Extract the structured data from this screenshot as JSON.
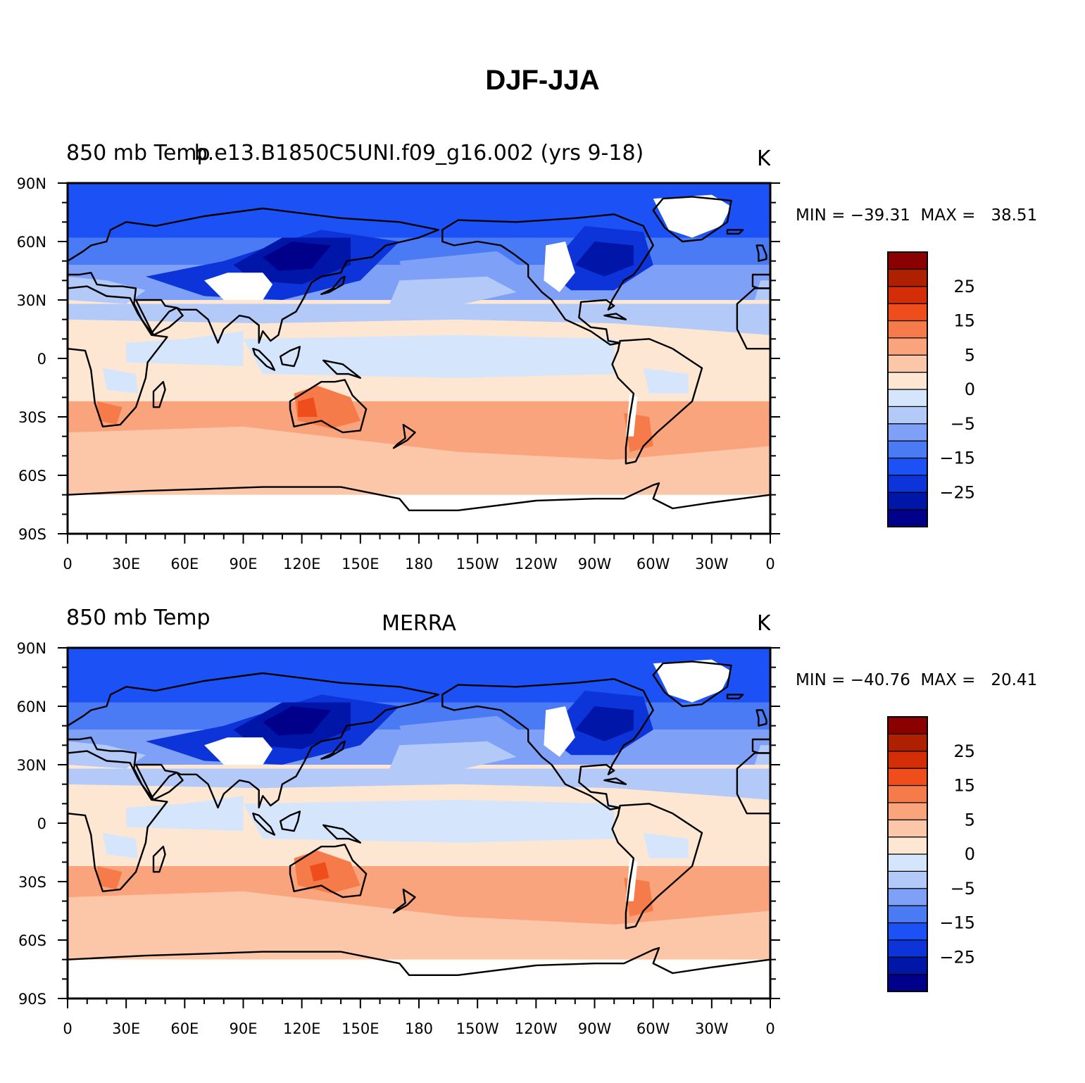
{
  "title": "DJF-JJA",
  "panels": [
    {
      "left_string": "850 mb Temp",
      "center_string": "b.e13.B1850C5UNI.f09_g16.002 (yrs 9-18)",
      "units": "K",
      "min_label": "MIN",
      "min_value": "-39.31",
      "max_label": "MAX",
      "max_value": "38.51"
    },
    {
      "left_string": "850 mb Temp",
      "center_string": "MERRA",
      "units": "K",
      "min_label": "MIN",
      "min_value": "-40.76",
      "max_label": "MAX",
      "max_value": "20.41"
    }
  ],
  "axes": {
    "lat_labels": [
      "90N",
      "60N",
      "30N",
      "0",
      "30S",
      "60S",
      "90S"
    ],
    "lon_labels": [
      "0",
      "30E",
      "60E",
      "90E",
      "120E",
      "150E",
      "180",
      "150W",
      "120W",
      "90W",
      "60W",
      "30W",
      "0"
    ]
  },
  "colorbar": {
    "colors": [
      "#00008b",
      "#0016a8",
      "#0d34d8",
      "#1c52f5",
      "#4a7bf5",
      "#7ea0f7",
      "#b3caf9",
      "#d5e6fc",
      "#fde6d2",
      "#fbc7a8",
      "#f9a47c",
      "#f57c4a",
      "#f04d1c",
      "#d42e08",
      "#ad2000",
      "#8b0000"
    ],
    "labels": [
      "-25",
      "-15",
      "-5",
      "0",
      "5",
      "15",
      "25"
    ]
  }
}
